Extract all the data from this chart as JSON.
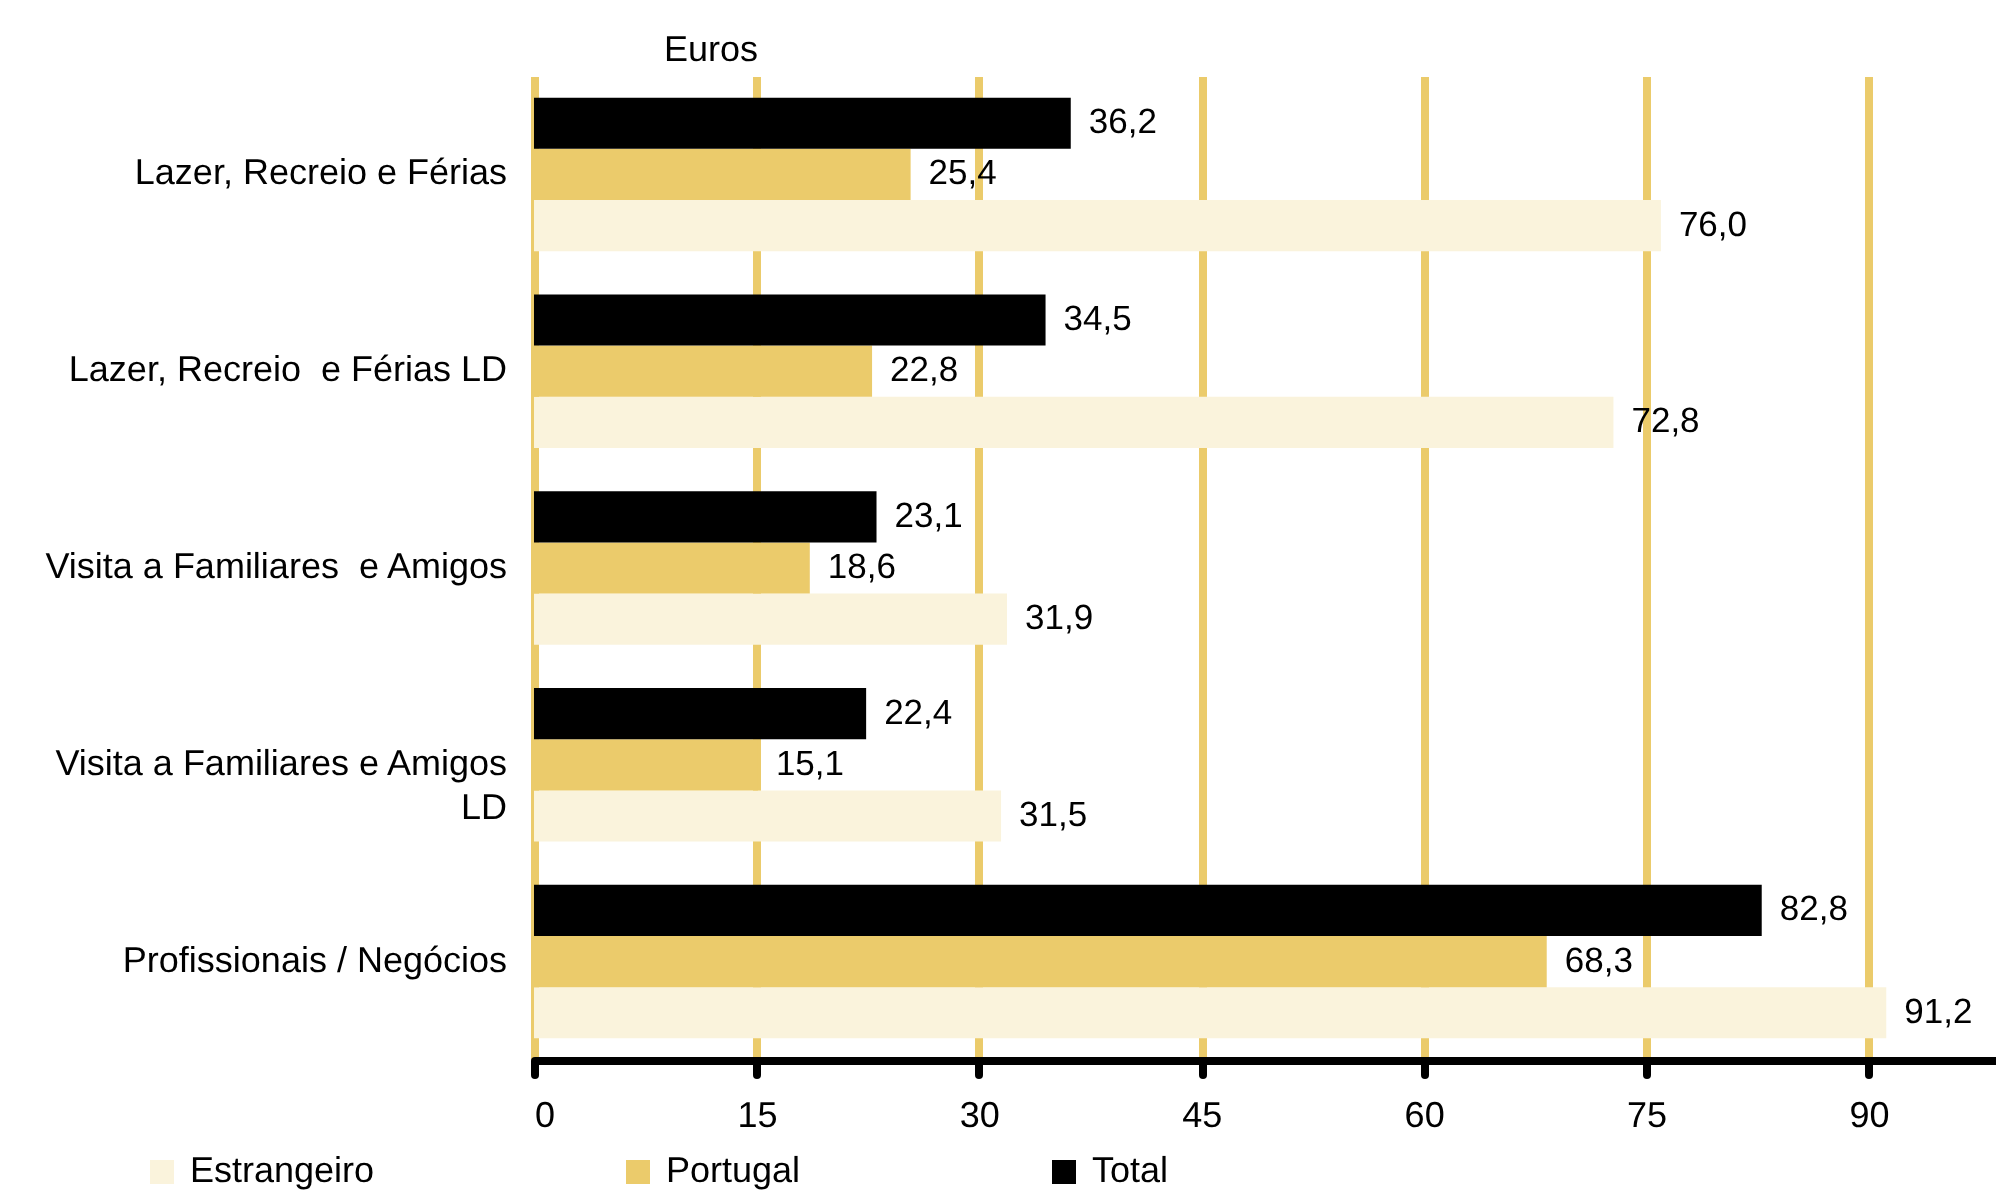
{
  "chart_data": {
    "type": "bar",
    "orientation": "horizontal",
    "xlabel": "Euros",
    "categories": [
      "Lazer, Recreio e Férias",
      "Lazer, Recreio  e Férias LD",
      "Visita a Familiares  e Amigos",
      "Visita a Familiares e Amigos LD",
      "Profissionais / Negócios"
    ],
    "series": [
      {
        "name": "Estrangeiro",
        "color": "#faf3dc",
        "values": [
          76.0,
          72.8,
          31.9,
          31.5,
          91.2
        ],
        "value_labels": [
          "76,0",
          "72,8",
          "31,9",
          "31,5",
          "91,2"
        ]
      },
      {
        "name": "Portugal",
        "color": "#ebcb6b",
        "values": [
          25.4,
          22.8,
          18.6,
          15.1,
          68.3
        ],
        "value_labels": [
          "25,4",
          "22,8",
          "18,6",
          "15,1",
          "68,3"
        ]
      },
      {
        "name": "Total",
        "color": "#000000",
        "values": [
          36.2,
          34.5,
          23.1,
          22.4,
          82.8
        ],
        "value_labels": [
          "36,2",
          "34,5",
          "23,1",
          "22,4",
          "82,8"
        ]
      }
    ],
    "xlim": [
      0,
      98.6
    ],
    "xticks": [
      0,
      15,
      30,
      45,
      60,
      75,
      90
    ],
    "grid": "x",
    "legend": "bottom"
  }
}
